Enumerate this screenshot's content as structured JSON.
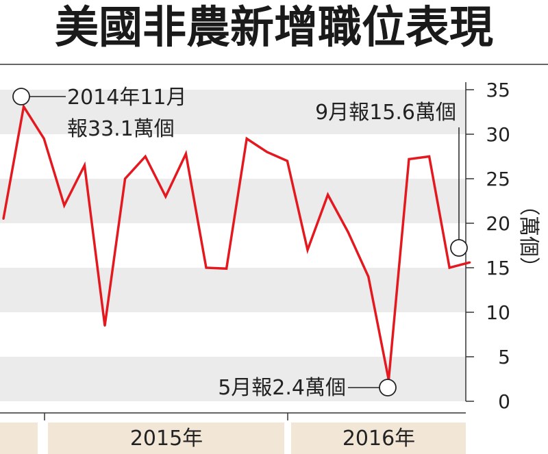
{
  "chart_data": {
    "type": "line",
    "title": "美國非農新增職位表現",
    "ylabel": "（萬個）",
    "ylim": [
      0,
      35
    ],
    "yticks": [
      0,
      5,
      10,
      15,
      20,
      25,
      30,
      35
    ],
    "grid": "alternating-horizontal-bands",
    "year_labels": [
      "2015年",
      "2016年"
    ],
    "series": [
      {
        "color": "#e3191f",
        "values": [
          20.5,
          33.1,
          29.5,
          22.0,
          26.5,
          8.5,
          25.0,
          27.5,
          23.0,
          27.8,
          15.0,
          14.9,
          29.5,
          28.0,
          27.0,
          17.0,
          23.2,
          19.0,
          14.0,
          2.4,
          27.2,
          27.5,
          15.0,
          15.6
        ]
      }
    ],
    "annotations": [
      {
        "line1": "2014年11月",
        "line2": "報33.1萬個",
        "index": 1,
        "value": 33.1
      },
      {
        "text": "9月報15.6萬個",
        "index": 23,
        "value": 15.6
      },
      {
        "text": "5月報2.4萬個",
        "index": 19,
        "value": 2.4
      }
    ]
  },
  "colors": {
    "line": "#e3191f",
    "band": "#ebebeb",
    "axis": "#333333",
    "year_band": "#f2e6d6"
  }
}
